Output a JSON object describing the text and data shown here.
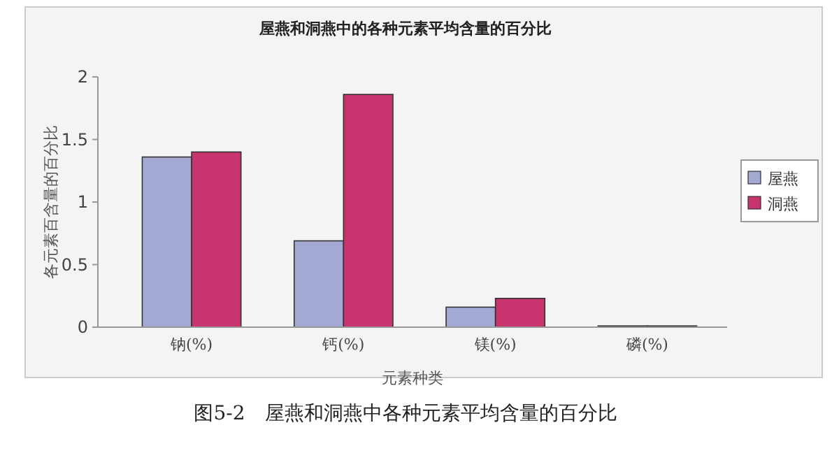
{
  "chart_data": {
    "type": "bar",
    "title": "屋燕和洞燕中的各种元素平均含量的百分比",
    "xlabel": "元素种类",
    "ylabel": "各元素百含量的百分比",
    "categories": [
      "钠(%)",
      "钙(%)",
      "镁(%)",
      "磷(%)"
    ],
    "series": [
      {
        "name": "屋燕",
        "color": "#a3a9d3",
        "values": [
          1.36,
          0.69,
          0.16,
          0.01
        ]
      },
      {
        "name": "洞燕",
        "color": "#c8356e",
        "values": [
          1.4,
          1.86,
          0.23,
          0.01
        ]
      }
    ],
    "ylim": [
      0,
      2
    ],
    "yticks": [
      0,
      0.5,
      1,
      1.5,
      2
    ],
    "grid": false,
    "legend": "right",
    "annotations": [
      "图5-2　屋燕和洞燕中各种元素平均含量的百分比"
    ]
  }
}
